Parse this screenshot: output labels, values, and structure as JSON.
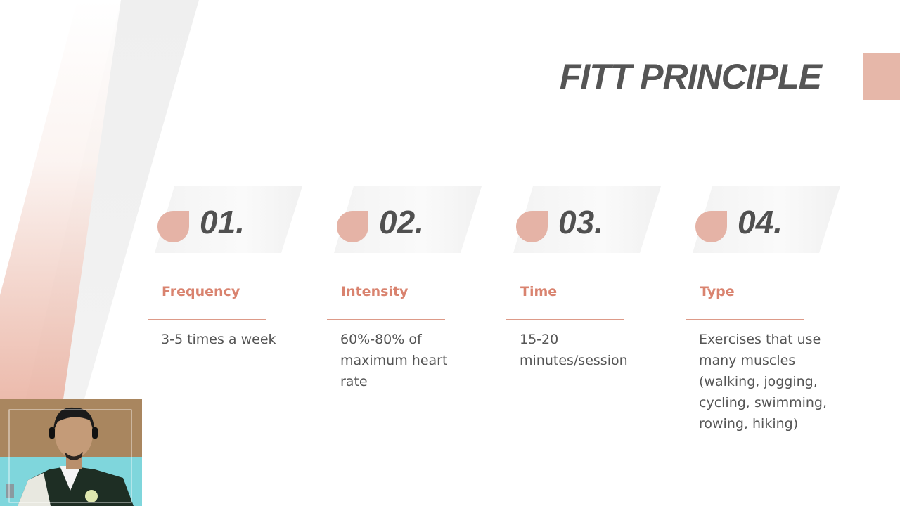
{
  "slide": {
    "title": "FITT PRINCIPLE",
    "accent_color": "#e6b7a9",
    "heading_color": "#d9836f"
  },
  "cards": [
    {
      "number": "01.",
      "heading": "Frequency",
      "text": "3-5 times a week"
    },
    {
      "number": "02.",
      "heading": "Intensity",
      "text": "60%-80% of maximum heart rate"
    },
    {
      "number": "03.",
      "heading": "Time",
      "text": "15-20 minutes/session"
    },
    {
      "number": "04.",
      "heading": "Type",
      "text": "Exercises that use many muscles (walking, jogging, cycling, swimming, rowing, hiking)"
    }
  ],
  "webcam": {
    "description_icon": "presenter-video"
  }
}
